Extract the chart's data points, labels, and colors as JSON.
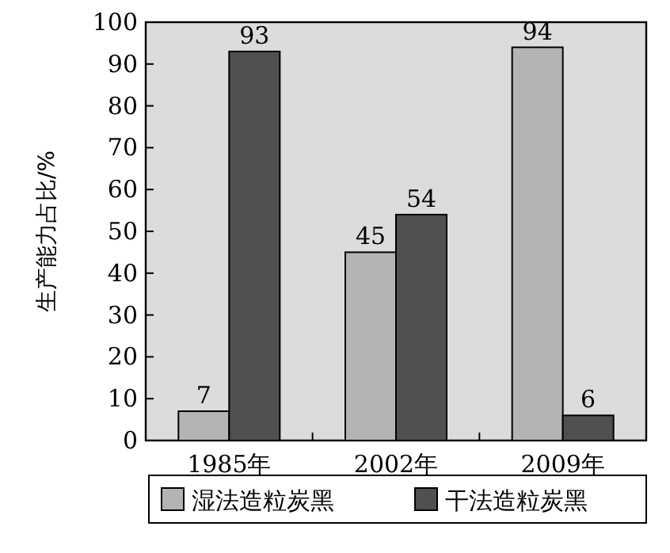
{
  "chart_data": {
    "type": "bar",
    "ylabel": "生产能力占比/%",
    "categories": [
      "1985年",
      "2002年",
      "2009年"
    ],
    "series": [
      {
        "name": "湿法造粒炭黑",
        "color": "#b4b4b4",
        "values": [
          7,
          45,
          94
        ]
      },
      {
        "name": "干法造粒炭黑",
        "color": "#505050",
        "values": [
          93,
          54,
          6
        ]
      }
    ],
    "ylim": [
      0,
      100
    ],
    "yticks": [
      0,
      10,
      20,
      30,
      40,
      50,
      60,
      70,
      80,
      90,
      100
    ],
    "data_labels": true,
    "legend": "bottom"
  }
}
